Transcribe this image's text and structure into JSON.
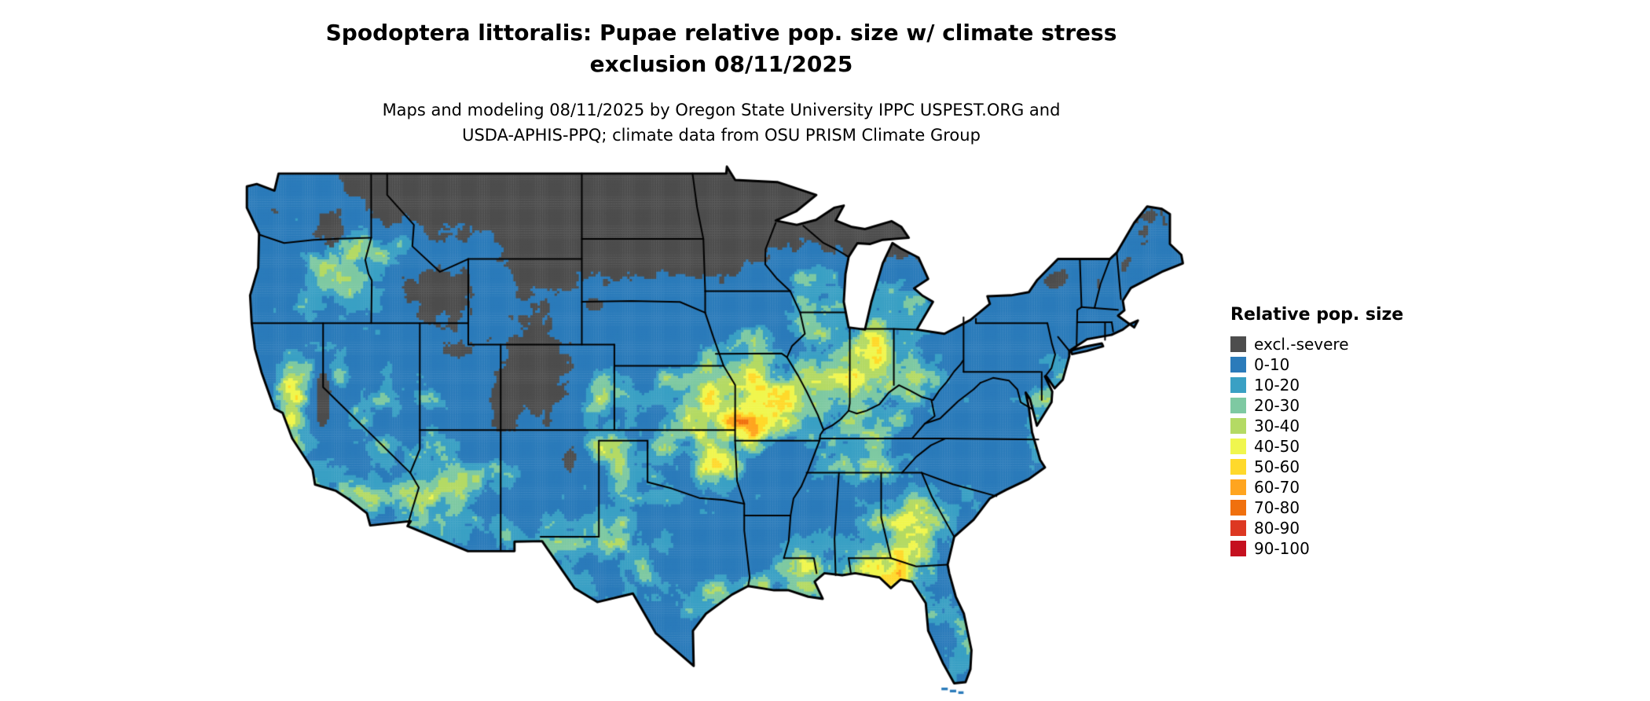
{
  "title": {
    "line1": "Spodoptera littoralis: Pupae relative pop. size w/ climate stress",
    "line2": "exclusion 08/11/2025",
    "full": "Spodoptera littoralis: Pupae relative pop. size w/ climate stress\nexclusion 08/11/2025"
  },
  "subtitle": {
    "line1": "Maps and modeling 08/11/2025 by Oregon State University IPPC USPEST.ORG and",
    "line2": "USDA-APHIS-PPQ; climate data from OSU PRISM Climate Group",
    "full": "Maps and modeling 08/11/2025 by Oregon State University IPPC USPEST.ORG and\nUSDA-APHIS-PPQ; climate data from OSU PRISM Climate Group"
  },
  "map": {
    "name": "united-states-relative-population-raster",
    "species": "Spodoptera littoralis",
    "stage": "Pupae",
    "date": "08/11/2025",
    "variable": "Relative pop. size"
  },
  "legend": {
    "title": "Relative pop. size",
    "items": [
      {
        "label": "excl.-severe",
        "color": "#4d4d4d"
      },
      {
        "label": "0-10",
        "color": "#2b7bba"
      },
      {
        "label": "10-20",
        "color": "#3aa0c4"
      },
      {
        "label": "20-30",
        "color": "#7ec9a2"
      },
      {
        "label": "30-40",
        "color": "#b4da64"
      },
      {
        "label": "40-50",
        "color": "#f0f64e"
      },
      {
        "label": "50-60",
        "color": "#ffd92b"
      },
      {
        "label": "60-70",
        "color": "#ffa51f"
      },
      {
        "label": "70-80",
        "color": "#f0700e"
      },
      {
        "label": "80-90",
        "color": "#dd3822"
      },
      {
        "label": "90-100",
        "color": "#c5101f"
      }
    ]
  }
}
